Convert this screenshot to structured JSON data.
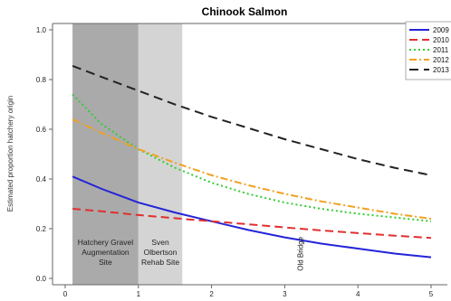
{
  "chart_data": {
    "type": "line",
    "title": "Chinook Salmon",
    "xlabel": "",
    "ylabel": "Estimated proportion hatchery origin",
    "xlim": [
      -0.2,
      5
    ],
    "ylim": [
      -0.04,
      1.03
    ],
    "x_ticks": [
      0,
      1,
      2,
      3,
      4,
      5
    ],
    "x_tick_labels": [
      "0",
      "1",
      "2",
      "3",
      "4",
      "5"
    ],
    "y_ticks": [
      0.0,
      0.2,
      0.4,
      0.6,
      0.8,
      1.0
    ],
    "y_tick_labels": [
      "0.0",
      "0.2",
      "0.4",
      "0.6",
      "0.8",
      "1.0"
    ],
    "legend_position": "top-right",
    "regions": [
      {
        "name": "hatchery-gravel-region",
        "x_start": 0.1,
        "x_end": 1.0,
        "color": "#aaaaaa",
        "label_lines": [
          "Hatchery Gravel",
          "Augmentation",
          "Site"
        ]
      },
      {
        "name": "sven-olbertson-region",
        "x_start": 1.0,
        "x_end": 1.6,
        "color": "#d4d4d4",
        "label_lines": [
          "Sven",
          "Olbertson",
          "Rehab Site"
        ]
      }
    ],
    "annotations": [
      {
        "text": "Old Bridge",
        "x": 3.25,
        "y_range": [
          0.03,
          0.19
        ]
      }
    ],
    "x": [
      0.1,
      0.5,
      1.0,
      1.5,
      2.0,
      2.5,
      3.0,
      3.5,
      4.0,
      4.5,
      5.0
    ],
    "series": [
      {
        "name": "2009",
        "color": "#2424d8",
        "dash": "solid",
        "values": [
          0.41,
          0.36,
          0.305,
          0.265,
          0.23,
          0.195,
          0.165,
          0.14,
          0.12,
          0.1,
          0.085
        ]
      },
      {
        "name": "2010",
        "color": "#e03030",
        "dash": "long",
        "values": [
          0.28,
          0.27,
          0.255,
          0.242,
          0.23,
          0.218,
          0.205,
          0.193,
          0.182,
          0.172,
          0.163
        ]
      },
      {
        "name": "2011",
        "color": "#33cc33",
        "dash": "dot",
        "values": [
          0.74,
          0.62,
          0.52,
          0.445,
          0.385,
          0.34,
          0.305,
          0.28,
          0.26,
          0.245,
          0.23
        ]
      },
      {
        "name": "2012",
        "color": "#f2a020",
        "dash": "dashdot",
        "values": [
          0.64,
          0.585,
          0.52,
          0.465,
          0.415,
          0.375,
          0.34,
          0.31,
          0.285,
          0.26,
          0.24
        ]
      },
      {
        "name": "2013",
        "color": "#222222",
        "dash": "dash",
        "values": [
          0.855,
          0.81,
          0.755,
          0.7,
          0.65,
          0.605,
          0.56,
          0.52,
          0.48,
          0.445,
          0.415
        ]
      }
    ]
  }
}
